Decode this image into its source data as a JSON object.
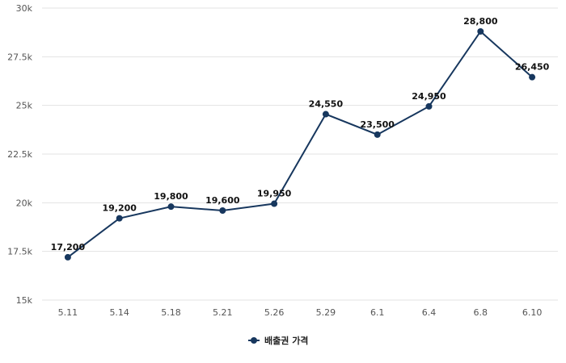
{
  "chart_data": {
    "type": "line",
    "categories": [
      "5.11",
      "5.14",
      "5.18",
      "5.21",
      "5.26",
      "5.29",
      "6.1",
      "6.4",
      "6.8",
      "6.10"
    ],
    "series": [
      {
        "name": "배출권 가격",
        "values": [
          17200,
          19200,
          19800,
          19600,
          19950,
          24550,
          23500,
          24950,
          28800,
          26450
        ],
        "labels": [
          "17,200",
          "19,200",
          "19,800",
          "19,600",
          "19,950",
          "24,550",
          "23,500",
          "24,950",
          "28,800",
          "26,450"
        ]
      }
    ],
    "ylim": [
      15000,
      30000
    ],
    "yticks": [
      15000,
      17500,
      20000,
      22500,
      25000,
      27500,
      30000
    ],
    "ytick_labels": [
      "15k",
      "17.5k",
      "20k",
      "22.5k",
      "25k",
      "27.5k",
      "30k"
    ],
    "grid": true,
    "legend": "bottom-center",
    "colors": {
      "series": "#17375e",
      "grid": "#e3e3e3"
    }
  }
}
